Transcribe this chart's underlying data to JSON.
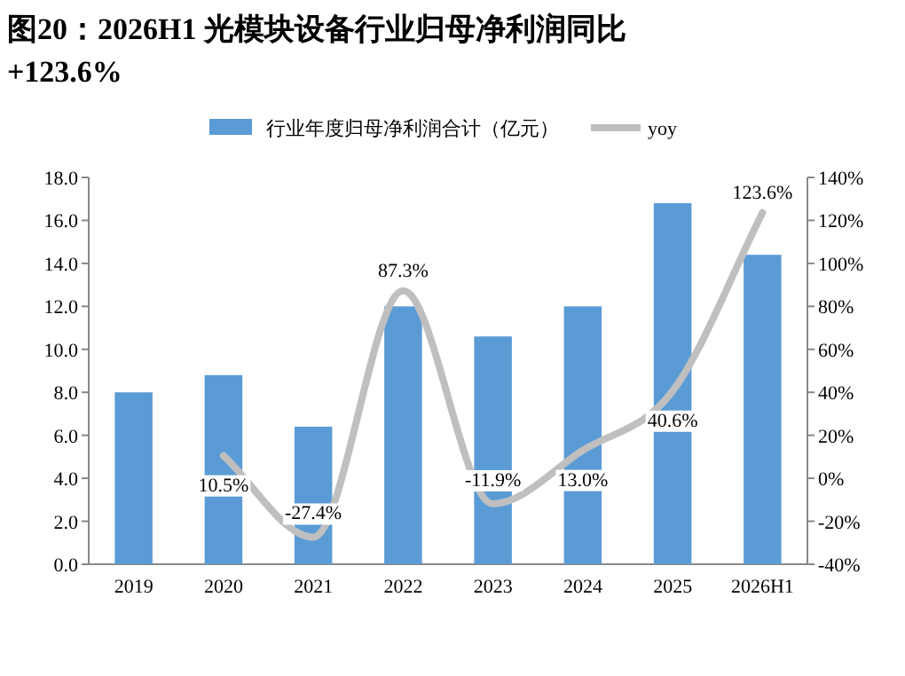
{
  "chart_data": {
    "type": "bar",
    "title": "图20：2026H1 光模块设备行业归母净利润同比+123.6%",
    "categories": [
      "2019",
      "2020",
      "2021",
      "2022",
      "2023",
      "2024",
      "2025",
      "2026H1"
    ],
    "series": [
      {
        "name": "行业年度归母净利润合计（亿元）",
        "color": "#5b9bd5",
        "values": [
          8.0,
          8.8,
          6.4,
          12.0,
          10.6,
          12.0,
          16.8,
          14.4
        ]
      },
      {
        "name": "yoy",
        "type": "line",
        "axis": "y2",
        "color": "#bfbfbf",
        "values": [
          null,
          10.5,
          -27.4,
          87.3,
          -11.9,
          13.0,
          40.6,
          123.6
        ],
        "value_labels": [
          null,
          "10.5%",
          "-27.4%",
          "87.3%",
          "-11.9%",
          "13.0%",
          "40.6%",
          "123.6%"
        ]
      }
    ],
    "ylim": [
      0,
      18
    ],
    "yticks": [
      {
        "value": 0,
        "label": "0.0"
      },
      {
        "value": 2,
        "label": "2.0"
      },
      {
        "value": 4,
        "label": "4.0"
      },
      {
        "value": 6,
        "label": "6.0"
      },
      {
        "value": 8,
        "label": "8.0"
      },
      {
        "value": 10,
        "label": "10.0"
      },
      {
        "value": 12,
        "label": "12.0"
      },
      {
        "value": 14,
        "label": "14.0"
      },
      {
        "value": 16,
        "label": "16.0"
      },
      {
        "value": 18,
        "label": "18.0"
      }
    ],
    "y2lim": [
      -40,
      140
    ],
    "y2ticks": [
      {
        "value": -40,
        "label": "-40%"
      },
      {
        "value": -20,
        "label": "-20%"
      },
      {
        "value": 0,
        "label": "0%"
      },
      {
        "value": 20,
        "label": "20%"
      },
      {
        "value": 40,
        "label": "40%"
      },
      {
        "value": 60,
        "label": "60%"
      },
      {
        "value": 80,
        "label": "80%"
      },
      {
        "value": 100,
        "label": "100%"
      },
      {
        "value": 120,
        "label": "120%"
      },
      {
        "value": 140,
        "label": "140%"
      }
    ],
    "legend": "top",
    "grid": false
  }
}
